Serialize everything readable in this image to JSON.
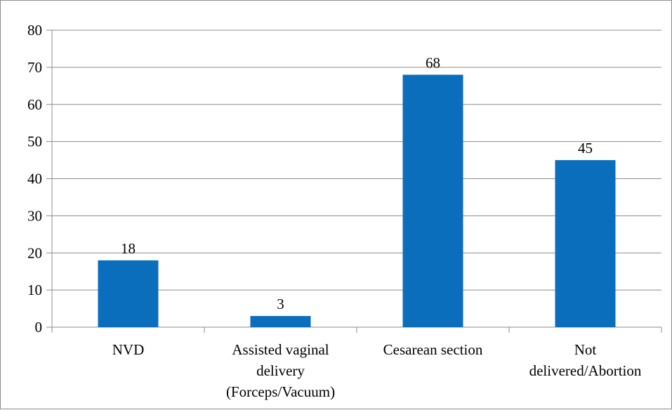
{
  "chart_data": {
    "type": "bar",
    "title": "",
    "xlabel": "",
    "ylabel": "",
    "categories": [
      [
        "NVD"
      ],
      [
        "Assisted vaginal",
        "delivery",
        "(Forceps/Vacuum)"
      ],
      [
        "Cesarean section"
      ],
      [
        "Not",
        "delivered/Abortion"
      ]
    ],
    "values": [
      18,
      3,
      68,
      45
    ],
    "data_labels": [
      "18",
      "3",
      "68",
      "45"
    ],
    "ylim": [
      0,
      80
    ],
    "yticks": [
      "0",
      "10",
      "20",
      "30",
      "40",
      "50",
      "60",
      "70",
      "80"
    ],
    "grid": true,
    "legend": "none",
    "bar_color": "#0a6ebd",
    "grid_color": "#8c8c8c"
  }
}
